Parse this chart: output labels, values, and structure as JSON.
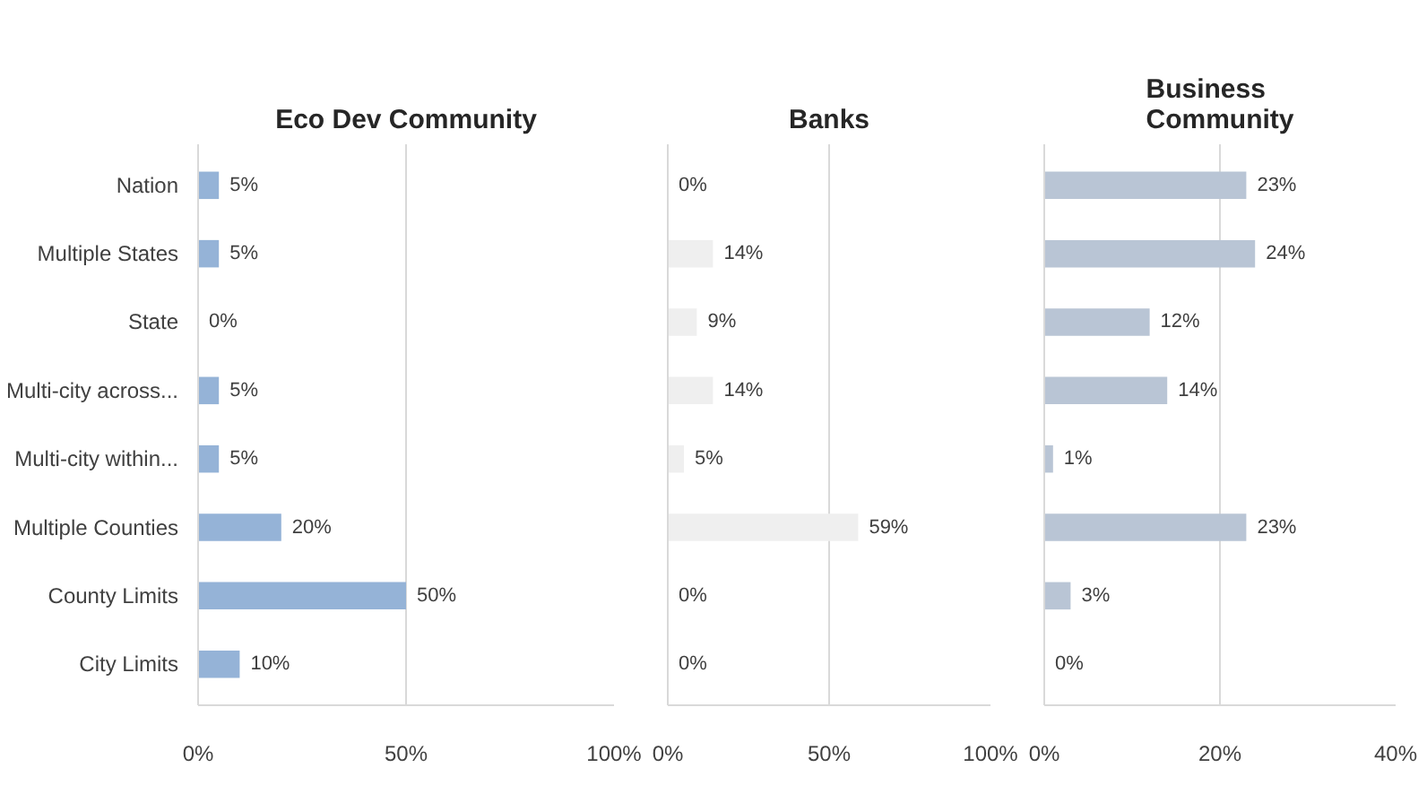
{
  "chart_data": [
    {
      "type": "bar",
      "orientation": "horizontal",
      "title": "Eco Dev Community",
      "categories": [
        "Nation",
        "Multiple States",
        "State",
        "Multi-city across...",
        "Multi-city within...",
        "Multiple Counties",
        "County Limits",
        "City Limits"
      ],
      "values": [
        5,
        5,
        0,
        5,
        5,
        20,
        50,
        10
      ],
      "value_labels": [
        "5%",
        "5%",
        "0%",
        "5%",
        "5%",
        "20%",
        "50%",
        "10%"
      ],
      "color": "#95b3d7",
      "xlim": [
        0,
        100
      ],
      "xticks": [
        {
          "value": 0,
          "label": "0%"
        },
        {
          "value": 50,
          "label": "50%"
        },
        {
          "value": 100,
          "label": "100%"
        }
      ],
      "grid": "x"
    },
    {
      "type": "bar",
      "orientation": "horizontal",
      "title": "Banks",
      "categories": [
        null,
        null,
        null,
        null,
        null,
        null,
        null,
        null
      ],
      "values": [
        0,
        14,
        9,
        14,
        5,
        59,
        0,
        0
      ],
      "value_labels": [
        "0%",
        "14%",
        "9%",
        "14%",
        "5%",
        "59%",
        "0%",
        "0%"
      ],
      "color": "#efefef",
      "xlim": [
        0,
        100
      ],
      "xticks": [
        {
          "value": 0,
          "label": "0%"
        },
        {
          "value": 50,
          "label": "50%"
        },
        {
          "value": 100,
          "label": "100%"
        }
      ],
      "grid": "x"
    },
    {
      "type": "bar",
      "orientation": "horizontal",
      "title": "Business Community",
      "categories": [
        null,
        null,
        null,
        null,
        null,
        null,
        null,
        null
      ],
      "values": [
        23,
        24,
        12,
        14,
        1,
        23,
        3,
        0
      ],
      "value_labels": [
        "23%",
        "24%",
        "12%",
        "14%",
        "1%",
        "23%",
        "3%",
        "0%"
      ],
      "color": "#b9c5d5",
      "xlim": [
        0,
        40
      ],
      "xticks": [
        {
          "value": 0,
          "label": "0%"
        },
        {
          "value": 20,
          "label": "20%"
        },
        {
          "value": 40,
          "label": "40%"
        }
      ],
      "grid": "x"
    }
  ]
}
